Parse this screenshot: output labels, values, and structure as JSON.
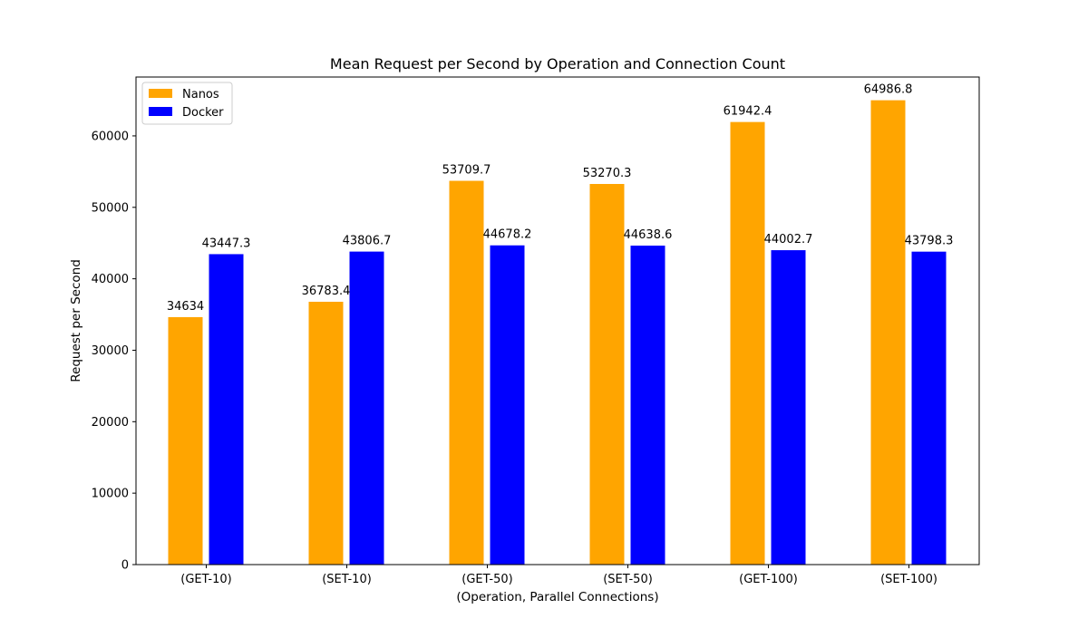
{
  "chart_data": {
    "type": "bar",
    "title": "Mean Request per Second by Operation and Connection Count",
    "xlabel": "(Operation, Parallel Connections)",
    "ylabel": "Request per Second",
    "categories": [
      "(GET-10)",
      "(SET-10)",
      "(GET-50)",
      "(SET-50)",
      "(GET-100)",
      "(SET-100)"
    ],
    "series": [
      {
        "name": "Nanos",
        "color": "#ffa500",
        "values": [
          34634,
          36783.4,
          53709.7,
          53270.3,
          61942.4,
          64986.8
        ],
        "labels": [
          "34634",
          "36783.4",
          "53709.7",
          "53270.3",
          "61942.4",
          "64986.8"
        ]
      },
      {
        "name": "Docker",
        "color": "#0000ff",
        "values": [
          43447.3,
          43806.7,
          44678.2,
          44638.6,
          44002.7,
          43798.3
        ],
        "labels": [
          "43447.3",
          "43806.7",
          "44678.2",
          "44638.6",
          "44002.7",
          "43798.3"
        ]
      }
    ],
    "ylim": [
      0,
      68236
    ],
    "yticks": [
      0,
      10000,
      20000,
      30000,
      40000,
      50000,
      60000
    ],
    "ytick_labels": [
      "0",
      "10000",
      "20000",
      "30000",
      "40000",
      "50000",
      "60000"
    ],
    "grid": false,
    "legend_position": "top-left"
  }
}
